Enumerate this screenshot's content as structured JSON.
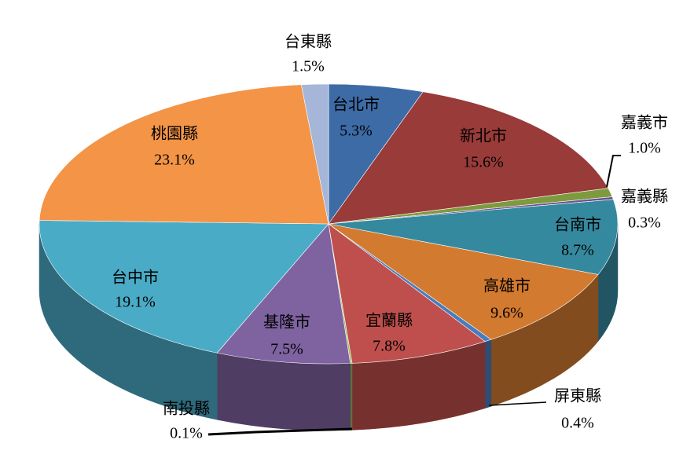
{
  "chart_data": {
    "type": "pie",
    "categories": [
      "台北市",
      "新北市",
      "嘉義市",
      "嘉義縣",
      "台南市",
      "高雄市",
      "屏東縣",
      "宜蘭縣",
      "南投縣",
      "基隆市",
      "台中市",
      "桃園縣",
      "台東縣"
    ],
    "values": [
      5.3,
      15.6,
      1.0,
      0.3,
      8.7,
      9.6,
      0.4,
      7.8,
      0.1,
      7.5,
      19.1,
      23.1,
      1.5
    ],
    "value_labels": [
      "5.3%",
      "15.6%",
      "1.0%",
      "0.3%",
      "8.7%",
      "9.6%",
      "0.4%",
      "7.8%",
      "0.1%",
      "7.5%",
      "19.1%",
      "23.1%",
      "1.5%"
    ],
    "colors": [
      "#3d6ba6",
      "#983b39",
      "#7e9a3e",
      "#6b5190",
      "#35899f",
      "#d27a30",
      "#4a7bbd",
      "#be4f4c",
      "#9bbb59",
      "#7f63a1",
      "#4aabc6",
      "#f39447",
      "#a5b6d8"
    ]
  }
}
